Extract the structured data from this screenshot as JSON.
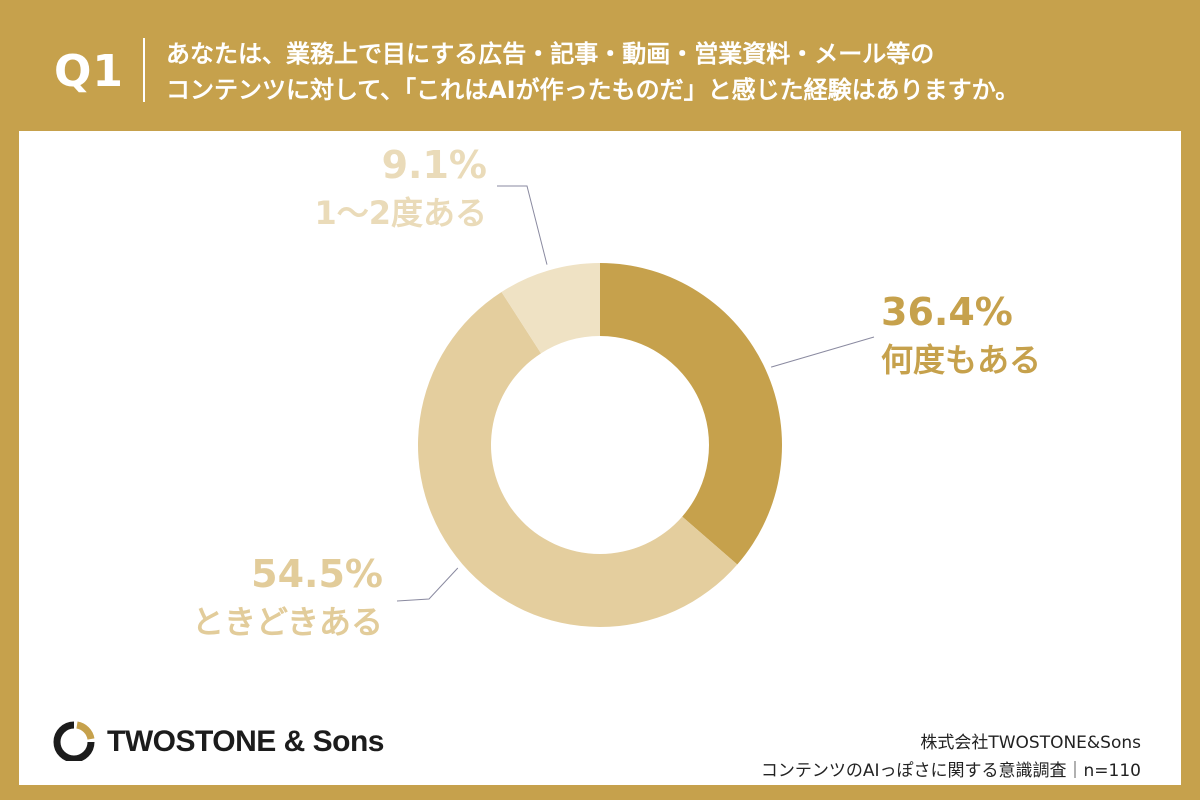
{
  "header": {
    "question_number": "Q1",
    "question_line1": "あなたは、業務上で目にする広告・記事・動画・営業資料・メール等の",
    "question_line2": "コンテンツに対して、「これはAIが作ったものだ」と感じた経験はありますか。"
  },
  "colors": {
    "frame": "#c6a14c",
    "slice_often": "#c6a14c",
    "slice_sometimes": "#e4ce9e",
    "slice_once": "#efe2c4",
    "label_often": "#c6a14c",
    "label_sometimes": "#e2cc9a",
    "label_once": "#eadbb9"
  },
  "chart_data": {
    "type": "pie",
    "donut": true,
    "title": "",
    "slices": [
      {
        "name": "何度もある",
        "value": 36.4,
        "label": "36.4%"
      },
      {
        "name": "ときどきある",
        "value": 54.5,
        "label": "54.5%"
      },
      {
        "name": "1〜2度ある",
        "value": 9.1,
        "label": "9.1%"
      }
    ]
  },
  "footer": {
    "logo_text": "TWOSTONE & Sons",
    "source_line1": "株式会社TWOSTONE&Sons",
    "source_line2": "コンテンツのAIっぽさに関する意識調査｜n=110"
  }
}
